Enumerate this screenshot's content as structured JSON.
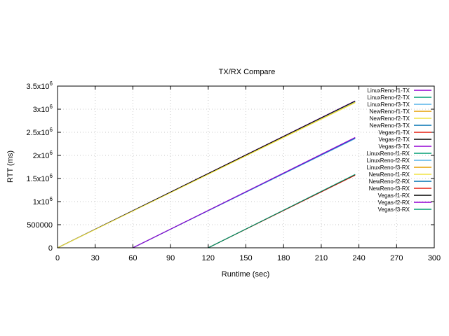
{
  "chart_data": {
    "type": "line",
    "title": "TX/RX Compare",
    "xlabel": "Runtime (sec)",
    "ylabel": "RTT (ms)",
    "xlim": [
      0,
      300
    ],
    "ylim": [
      0,
      3500000
    ],
    "xticks": [
      0,
      30,
      60,
      90,
      120,
      150,
      180,
      210,
      240,
      270,
      300
    ],
    "yticks": [
      {
        "value": 0,
        "base": "0",
        "exp": ""
      },
      {
        "value": 500000,
        "base": "500000",
        "exp": ""
      },
      {
        "value": 1000000,
        "base": "1x10",
        "exp": "6"
      },
      {
        "value": 1500000,
        "base": "1.5x10",
        "exp": "6"
      },
      {
        "value": 2000000,
        "base": "2x10",
        "exp": "6"
      },
      {
        "value": 2500000,
        "base": "2.5x10",
        "exp": "6"
      },
      {
        "value": 3000000,
        "base": "3x10",
        "exp": "6"
      },
      {
        "value": 3500000,
        "base": "3.5x10",
        "exp": "6"
      }
    ],
    "grid": true,
    "legend_position": "top-right",
    "series": [
      {
        "name": "LinuxReno-f1-TX",
        "color": "#9400d3",
        "x": [
          0,
          237
        ],
        "y": [
          0,
          3180000
        ]
      },
      {
        "name": "LinuxReno-f2-TX",
        "color": "#009e73",
        "x": [
          0,
          237
        ],
        "y": [
          0,
          3170000
        ]
      },
      {
        "name": "LinuxReno-f3-TX",
        "color": "#56b4e9",
        "x": [
          0,
          237
        ],
        "y": [
          0,
          3160000
        ]
      },
      {
        "name": "NewReno-f1-TX",
        "color": "#e69f00",
        "x": [
          0,
          237
        ],
        "y": [
          0,
          3150000
        ]
      },
      {
        "name": "NewReno-f2-TX",
        "color": "#f0e442",
        "x": [
          0,
          237
        ],
        "y": [
          0,
          3145000
        ]
      },
      {
        "name": "NewReno-f3-TX",
        "color": "#0072b2",
        "x": [
          60,
          237
        ],
        "y": [
          0,
          2380000
        ]
      },
      {
        "name": "Vegas-f1-TX",
        "color": "#e51e10",
        "x": [
          60,
          237
        ],
        "y": [
          0,
          2370000
        ]
      },
      {
        "name": "Vegas-f2-TX",
        "color": "#000000",
        "x": [
          0,
          237
        ],
        "y": [
          0,
          3175000
        ]
      },
      {
        "name": "Vegas-f3-TX",
        "color": "#9400d3",
        "x": [
          60,
          237
        ],
        "y": [
          0,
          2390000
        ]
      },
      {
        "name": "LinuxReno-f1-RX",
        "color": "#009e73",
        "x": [
          120,
          237
        ],
        "y": [
          0,
          1580000
        ]
      },
      {
        "name": "LinuxReno-f2-RX",
        "color": "#56b4e9",
        "x": [
          60,
          237
        ],
        "y": [
          0,
          2360000
        ]
      },
      {
        "name": "LinuxReno-f3-RX",
        "color": "#e69f00",
        "x": [
          120,
          237
        ],
        "y": [
          0,
          1575000
        ]
      },
      {
        "name": "NewReno-f1-RX",
        "color": "#f0e442",
        "x": [
          0,
          237
        ],
        "y": [
          0,
          3140000
        ]
      },
      {
        "name": "NewReno-f2-RX",
        "color": "#0072b2",
        "x": [
          60,
          237
        ],
        "y": [
          0,
          2375000
        ]
      },
      {
        "name": "NewReno-f3-RX",
        "color": "#e51e10",
        "x": [
          120,
          237
        ],
        "y": [
          0,
          1570000
        ]
      },
      {
        "name": "Vegas-f1-RX",
        "color": "#000000",
        "x": [
          120,
          237
        ],
        "y": [
          0,
          1585000
        ]
      },
      {
        "name": "Vegas-f2-RX",
        "color": "#9400d3",
        "x": [
          60,
          237
        ],
        "y": [
          0,
          2385000
        ]
      },
      {
        "name": "Vegas-f3-RX",
        "color": "#009e73",
        "x": [
          120,
          237
        ],
        "y": [
          0,
          1590000
        ]
      }
    ]
  }
}
